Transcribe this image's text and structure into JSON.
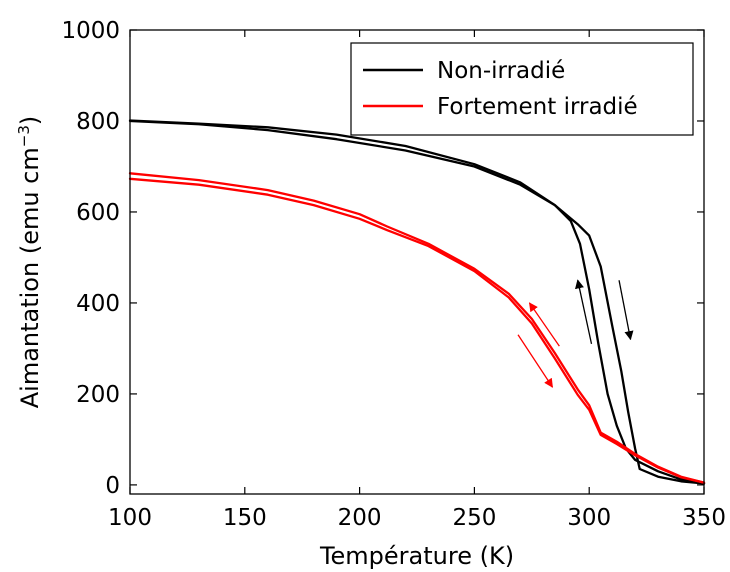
{
  "chart_data": {
    "type": "line",
    "xlabel": "Température (K)",
    "ylabel": "Aimantation (emu cm",
    "ylabel_sup": "−3",
    "ylabel_close": ")",
    "xlim": [
      100,
      350
    ],
    "ylim": [
      -20,
      1000
    ],
    "xticks": [
      100,
      150,
      200,
      250,
      300,
      350
    ],
    "yticks": [
      0,
      200,
      400,
      600,
      800,
      1000
    ],
    "grid": false,
    "legend_position": "top-right",
    "series": [
      {
        "name": "Non-irradié",
        "color": "#000000",
        "curves": [
          [
            [
              100,
              801
            ],
            [
              130,
              794
            ],
            [
              160,
              786
            ],
            [
              190,
              770
            ],
            [
              220,
              745
            ],
            [
              250,
              705
            ],
            [
              270,
              665
            ],
            [
              285,
              615
            ],
            [
              295,
              573
            ],
            [
              300,
              548
            ],
            [
              305,
              480
            ],
            [
              310,
              350
            ],
            [
              314,
              250
            ],
            [
              317,
              160
            ],
            [
              320,
              80
            ],
            [
              322,
              35
            ],
            [
              330,
              18
            ],
            [
              340,
              8
            ],
            [
              350,
              3
            ]
          ],
          [
            [
              100,
              800
            ],
            [
              130,
              793
            ],
            [
              160,
              780
            ],
            [
              190,
              760
            ],
            [
              220,
              735
            ],
            [
              250,
              700
            ],
            [
              270,
              660
            ],
            [
              285,
              615
            ],
            [
              292,
              580
            ],
            [
              296,
              530
            ],
            [
              300,
              430
            ],
            [
              304,
              310
            ],
            [
              308,
              200
            ],
            [
              312,
              130
            ],
            [
              316,
              80
            ],
            [
              320,
              55
            ],
            [
              330,
              30
            ],
            [
              340,
              12
            ],
            [
              350,
              3
            ]
          ]
        ],
        "arrows": [
          {
            "from": [
              301,
              310
            ],
            "to": [
              295,
              450
            ]
          },
          {
            "from": [
              313,
              450
            ],
            "to": [
              318,
              320
            ]
          }
        ]
      },
      {
        "name": "Fortement irradié",
        "color": "#ff0000",
        "curves": [
          [
            [
              100,
              685
            ],
            [
              130,
              670
            ],
            [
              160,
              648
            ],
            [
              180,
              625
            ],
            [
              200,
              595
            ],
            [
              212,
              568
            ],
            [
              230,
              530
            ],
            [
              250,
              475
            ],
            [
              265,
              420
            ],
            [
              275,
              365
            ],
            [
              285,
              290
            ],
            [
              295,
              210
            ],
            [
              300,
              175
            ],
            [
              305,
              115
            ],
            [
              312,
              95
            ],
            [
              320,
              68
            ],
            [
              330,
              40
            ],
            [
              340,
              18
            ],
            [
              350,
              5
            ]
          ],
          [
            [
              100,
              673
            ],
            [
              130,
              660
            ],
            [
              160,
              638
            ],
            [
              180,
              615
            ],
            [
              200,
              585
            ],
            [
              212,
              560
            ],
            [
              230,
              525
            ],
            [
              250,
              470
            ],
            [
              265,
              412
            ],
            [
              275,
              355
            ],
            [
              285,
              278
            ],
            [
              295,
              198
            ],
            [
              300,
              165
            ],
            [
              305,
              110
            ],
            [
              312,
              90
            ],
            [
              320,
              65
            ],
            [
              330,
              38
            ],
            [
              340,
              17
            ],
            [
              350,
              5
            ]
          ]
        ],
        "arrows": [
          {
            "from": [
              287,
              305
            ],
            "to": [
              274,
              400
            ]
          },
          {
            "from": [
              269,
              330
            ],
            "to": [
              284,
              215
            ]
          }
        ]
      }
    ]
  }
}
